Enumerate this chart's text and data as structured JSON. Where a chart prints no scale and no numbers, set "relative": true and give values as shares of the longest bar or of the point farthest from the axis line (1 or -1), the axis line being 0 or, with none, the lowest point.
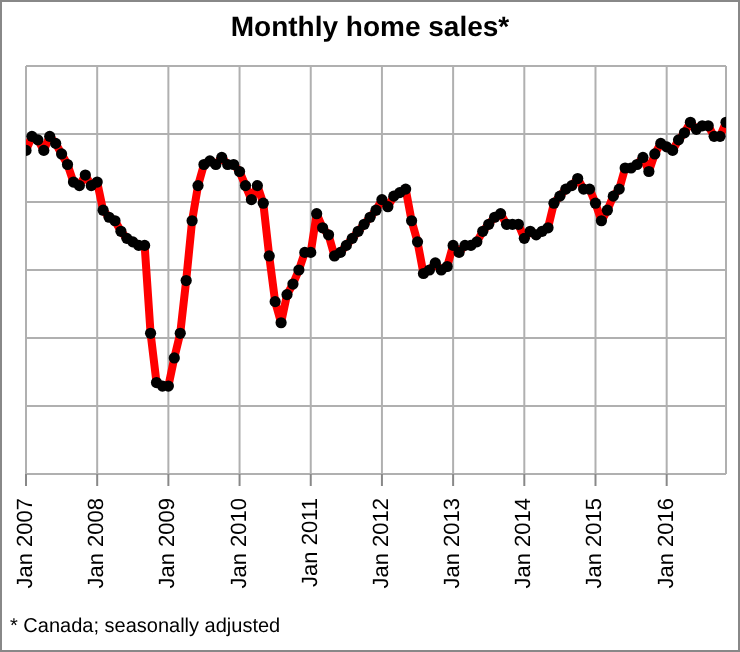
{
  "chart_data": {
    "type": "line",
    "title": "Monthly home sales*",
    "relative": true,
    "grid": true,
    "marker": "circle",
    "line_style": "solid",
    "tick_labels": "x",
    "annotations": [
      "* Canada; seasonally adjusted"
    ],
    "categories": [
      "Jan 2007",
      null,
      null,
      null,
      null,
      null,
      null,
      null,
      null,
      null,
      null,
      null,
      "Jan 2008",
      null,
      null,
      null,
      null,
      null,
      null,
      null,
      null,
      null,
      null,
      null,
      "Jan 2009",
      null,
      null,
      null,
      null,
      null,
      null,
      null,
      null,
      null,
      null,
      null,
      "Jan 2010",
      null,
      null,
      null,
      null,
      null,
      null,
      null,
      null,
      null,
      null,
      null,
      "Jan 2011",
      null,
      null,
      null,
      null,
      null,
      null,
      null,
      null,
      null,
      null,
      null,
      "Jan 2012",
      null,
      null,
      null,
      null,
      null,
      null,
      null,
      null,
      null,
      null,
      null,
      "Jan 2013",
      null,
      null,
      null,
      null,
      null,
      null,
      null,
      null,
      null,
      null,
      null,
      "Jan 2014",
      null,
      null,
      null,
      null,
      null,
      null,
      null,
      null,
      null,
      null,
      null,
      "Jan 2015",
      null,
      null,
      null,
      null,
      null,
      null,
      null,
      null,
      null,
      null,
      null,
      "Jan 2016",
      null,
      null,
      null,
      null,
      null,
      null,
      null,
      null,
      null,
      null
    ],
    "series": [
      {
        "color": "#ff0000",
        "values": [
          0.92,
          0.96,
          0.95,
          0.92,
          0.96,
          0.94,
          0.91,
          0.88,
          0.83,
          0.82,
          0.85,
          0.82,
          0.83,
          0.75,
          0.73,
          0.72,
          0.69,
          0.67,
          0.66,
          0.65,
          0.65,
          0.4,
          0.26,
          0.25,
          0.25,
          0.33,
          0.4,
          0.55,
          0.72,
          0.82,
          0.88,
          0.89,
          0.88,
          0.9,
          0.88,
          0.88,
          0.86,
          0.82,
          0.78,
          0.82,
          0.77,
          0.62,
          0.49,
          0.43,
          0.51,
          0.54,
          0.58,
          0.63,
          0.63,
          0.74,
          0.7,
          0.68,
          0.62,
          0.63,
          0.65,
          0.67,
          0.69,
          0.71,
          0.73,
          0.75,
          0.78,
          0.76,
          0.79,
          0.8,
          0.81,
          0.72,
          0.66,
          0.57,
          0.58,
          0.6,
          0.58,
          0.59,
          0.65,
          0.63,
          0.65,
          0.65,
          0.66,
          0.69,
          0.71,
          0.73,
          0.74,
          0.71,
          0.71,
          0.71,
          0.67,
          0.69,
          0.68,
          0.69,
          0.7,
          0.77,
          0.79,
          0.81,
          0.82,
          0.84,
          0.81,
          0.81,
          0.77,
          0.72,
          0.75,
          0.79,
          0.81,
          0.87,
          0.87,
          0.88,
          0.9,
          0.86,
          0.91,
          0.94,
          0.93,
          0.92,
          0.95,
          0.97,
          1.0,
          0.98,
          0.99,
          0.99,
          0.96,
          0.96,
          1.0
        ]
      }
    ]
  }
}
